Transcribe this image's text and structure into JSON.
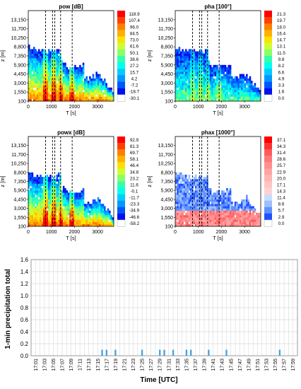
{
  "chart_data": [
    {
      "type": "heatmap",
      "title": "pow [dB]",
      "xlabel": "T [s]",
      "ylabel": "z [m]",
      "x_ticks": [
        0,
        1000,
        2000,
        3000
      ],
      "xlim": [
        0,
        3700
      ],
      "y_ticks": [
        100,
        1550,
        3000,
        4450,
        5900,
        7350,
        8800,
        10250,
        11700,
        13150
      ],
      "ylim": [
        100,
        14600
      ],
      "dashed_lines_x": [
        750,
        1050,
        1150,
        1400,
        1900
      ],
      "colorbar": {
        "labels": [
          "118.9",
          "107.4",
          "96.0",
          "84.5",
          "73.0",
          "61.6",
          "50.1",
          "38.6",
          "27.2",
          "15.7",
          "4.2",
          "-7.2",
          "-18.7",
          "-30.1"
        ],
        "colors": [
          "#ff0000",
          "#ff4000",
          "#ff8000",
          "#ffb000",
          "#ffe000",
          "#ccff33",
          "#88ff66",
          "#33ffaa",
          "#00ffee",
          "#00ccff",
          "#0099ff",
          "#0055ff",
          "#0011ee",
          "#ffffff"
        ]
      }
    },
    {
      "type": "heatmap",
      "title": "pha [100°]",
      "xlabel": "T [s]",
      "ylabel": "z [m]",
      "x_ticks": [
        0,
        1000,
        2000,
        3000
      ],
      "xlim": [
        0,
        3700
      ],
      "y_ticks": [
        100,
        1550,
        3000,
        4450,
        5900,
        7350,
        8800,
        10250,
        11700,
        13150
      ],
      "ylim": [
        100,
        14600
      ],
      "dashed_lines_x": [
        750,
        1050,
        1150,
        1400,
        1900
      ],
      "colorbar": {
        "labels": [
          "21.3",
          "19.7",
          "18.0",
          "16.4",
          "14.7",
          "13.1",
          "11.5",
          "9.8",
          "8.2",
          "6.6",
          "4.9",
          "3.3",
          "1.6",
          "0.0"
        ],
        "colors": [
          "#ff0000",
          "#ff4000",
          "#ff8000",
          "#ffb000",
          "#ffe000",
          "#ccff33",
          "#88ff66",
          "#33ffaa",
          "#00ffee",
          "#00ccff",
          "#0099ff",
          "#0055ff",
          "#0011ee",
          "#ffffff"
        ]
      }
    },
    {
      "type": "heatmap",
      "title": "powx [dB]",
      "xlabel": "T [s]",
      "ylabel": "z [m]",
      "x_ticks": [
        0,
        1000,
        2000,
        3000
      ],
      "xlim": [
        0,
        3700
      ],
      "y_ticks": [
        100,
        1550,
        3000,
        4450,
        5900,
        7350,
        8800,
        10250,
        11700,
        13150
      ],
      "ylim": [
        100,
        14600
      ],
      "dashed_lines_x": [
        750,
        1050,
        1150,
        1400,
        1900
      ],
      "colorbar": {
        "labels": [
          "92.9",
          "81.3",
          "69.7",
          "58.1",
          "46.4",
          "34.8",
          "23.2",
          "11.6",
          "-0.1",
          "-11.7",
          "-23.3",
          "-34.9",
          "-46.6",
          "-58.2"
        ],
        "colors": [
          "#ff0000",
          "#ff4000",
          "#ff8000",
          "#ffb000",
          "#ffe000",
          "#ccff33",
          "#88ff66",
          "#33ffaa",
          "#00ffee",
          "#00ccff",
          "#0099ff",
          "#0055ff",
          "#0011ee",
          "#ffffff"
        ]
      }
    },
    {
      "type": "heatmap",
      "title": "phax [1000°]",
      "xlabel": "T [s]",
      "ylabel": "z [m]",
      "x_ticks": [
        0,
        1000,
        2000,
        3000
      ],
      "xlim": [
        0,
        3700
      ],
      "y_ticks": [
        100,
        1550,
        3000,
        4450,
        5900,
        7350,
        8800,
        10250,
        11700,
        13150
      ],
      "ylim": [
        100,
        14600
      ],
      "dashed_lines_x": [
        750,
        1050,
        1150,
        1400,
        1900
      ],
      "colorbar": {
        "labels": [
          "37.1",
          "34.3",
          "31.4",
          "28.6",
          "25.7",
          "22.9",
          "20.0",
          "17.1",
          "14.3",
          "11.4",
          "8.6",
          "5.7",
          "2.9",
          "0.0"
        ],
        "colors": [
          "#ff0000",
          "#ff3030",
          "#ff5a5a",
          "#ff7878",
          "#ff9090",
          "#ffa4a4",
          "#ffb5b5",
          "#ffc4c4",
          "#ffd2d2",
          "#c8dcff",
          "#9cc0ff",
          "#5f90ff",
          "#2050ff",
          "#ffffff"
        ]
      }
    },
    {
      "type": "bar",
      "xlabel": "Time [UTC]",
      "ylabel": "1-min precipitation total",
      "ylim": [
        0,
        1.6
      ],
      "y_ticks": [
        "0.0",
        "0.2",
        "0.4",
        "0.6",
        "0.8",
        "1.0",
        "1.2",
        "1.4",
        "1.6"
      ],
      "categories": [
        "17:01",
        "17:03",
        "17:05",
        "17:07",
        "17:09",
        "17:11",
        "17:13",
        "17:15",
        "17:17",
        "17:19",
        "17:21",
        "17:23",
        "17:25",
        "17:27",
        "17:29",
        "17:31",
        "17:33",
        "17:35",
        "17:37",
        "17:39",
        "17:41",
        "17:43",
        "17:45",
        "17:47",
        "17:49",
        "17:51",
        "17:53",
        "17:55",
        "17:57",
        "17:59"
      ],
      "x": [
        "17:16",
        "17:17",
        "17:19",
        "17:25",
        "17:29",
        "17:30",
        "17:32",
        "17:35",
        "17:36",
        "17:40",
        "17:44",
        "17:56"
      ],
      "values": [
        0.1,
        0.1,
        0.1,
        0.1,
        0.1,
        0.1,
        0.1,
        0.1,
        0.1,
        0.1,
        0.1,
        0.1
      ],
      "grid": true,
      "bar_color": "#4aa3df"
    }
  ]
}
